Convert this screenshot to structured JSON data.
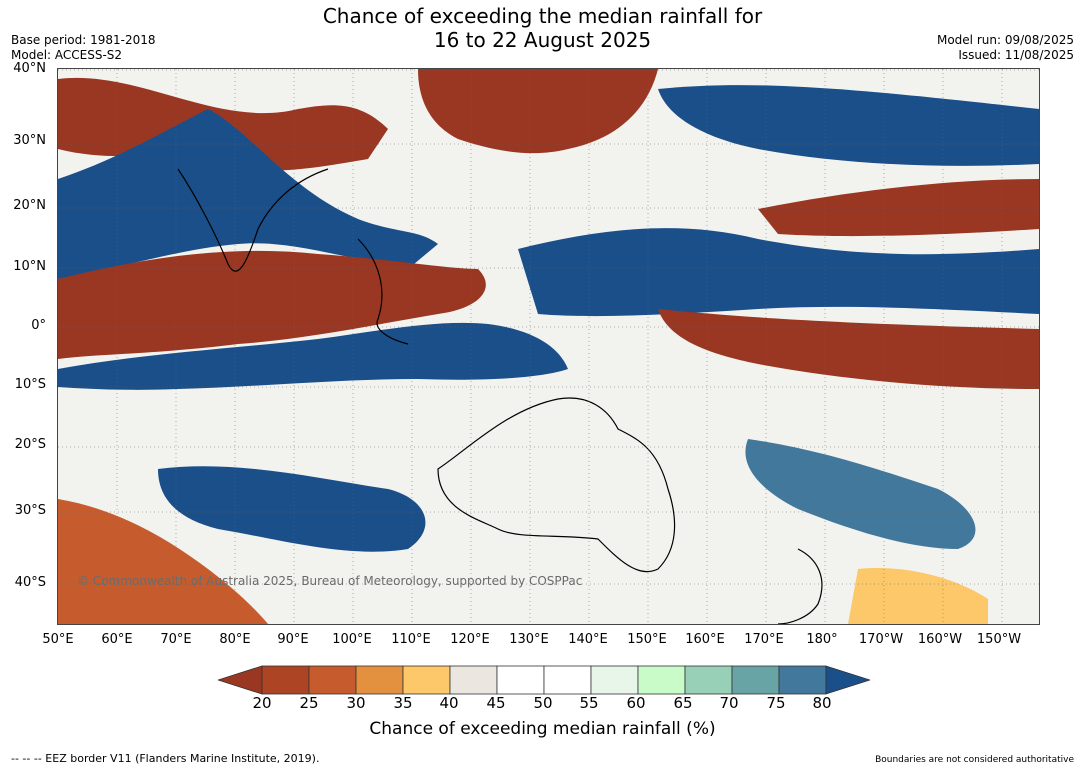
{
  "title_line1": "Chance of exceeding the median rainfall for",
  "title_line2": "16 to 22 August 2025",
  "base_period": "Base period: 1981-2018",
  "model": "Model: ACCESS-S2",
  "model_run": "Model run: 09/08/2025",
  "issued": "Issued: 11/08/2025",
  "lat_labels": [
    "40°N",
    "30°N",
    "20°N",
    "10°N",
    "0°",
    "10°S",
    "20°S",
    "30°S",
    "40°S"
  ],
  "lon_labels": [
    "50°E",
    "60°E",
    "70°E",
    "80°E",
    "90°E",
    "100°E",
    "110°E",
    "120°E",
    "130°E",
    "140°E",
    "150°E",
    "160°E",
    "170°E",
    "180°",
    "170°W",
    "160°W",
    "150°W"
  ],
  "credit": "© Commonwealth of Australia 2025, Bureau of Meteorology, supported by COSPPac",
  "colorbar": {
    "ticks": [
      "20",
      "25",
      "30",
      "35",
      "40",
      "45",
      "50",
      "55",
      "60",
      "65",
      "70",
      "75",
      "80"
    ],
    "colors": [
      "#9a3722",
      "#ad4424",
      "#c65c2d",
      "#e3913f",
      "#fcc86a",
      "#ebe7e0",
      "#ffffff",
      "#ffffff",
      "#e8f5e9",
      "#c8fbc8",
      "#98d0b7",
      "#68a4a6",
      "#43789d",
      "#1b4f8a"
    ],
    "label": "Chance of exceeding median rainfall (%)"
  },
  "footer_left": "--  --  -- EEZ border V11 (Flanders Marine Institute, 2019).",
  "footer_right": "Boundaries are not considered authoritative",
  "map_data": {
    "lat_range": [
      "45°S",
      "40°N"
    ],
    "lon_range": [
      "50°E",
      "145°W"
    ],
    "highlights": [
      {
        "region": "northern Indian Ocean / Arabian Sea to Bay of Bengal",
        "band": "80"
      },
      {
        "region": "equatorial Indian Ocean",
        "band": "20"
      },
      {
        "region": "Maritime Continent / Indonesia",
        "band": "80"
      },
      {
        "region": "western Pacific 10°N belt",
        "band": "80"
      },
      {
        "region": "central Pacific south of equator",
        "band": "20"
      },
      {
        "region": "subtropical North Pacific near 20°N",
        "band": "20"
      },
      {
        "region": "southwest Indian Ocean near 40°S",
        "band": "30"
      },
      {
        "region": "Australian interior",
        "band": "50"
      }
    ]
  }
}
